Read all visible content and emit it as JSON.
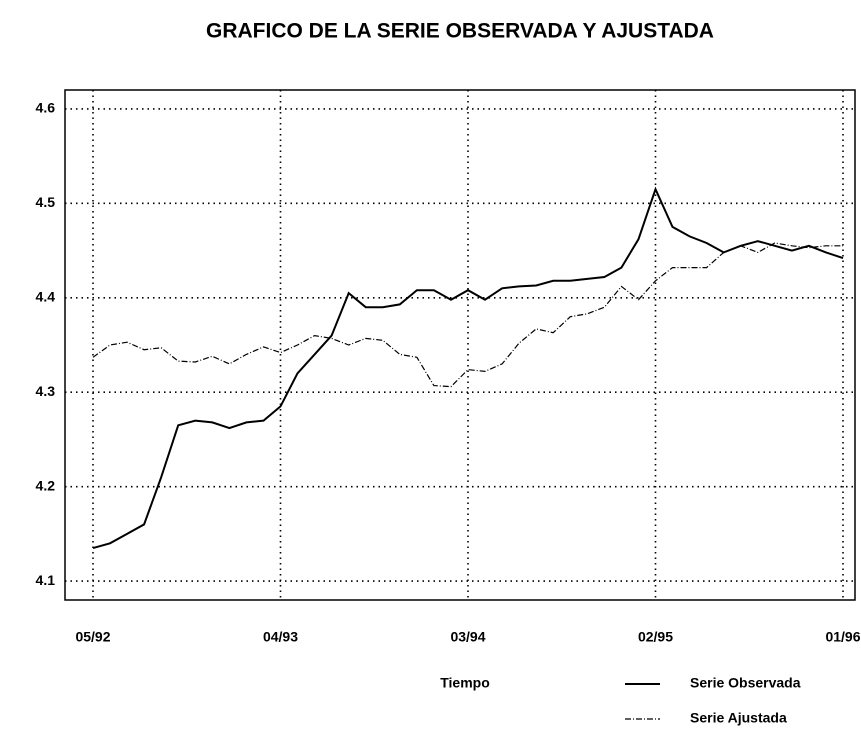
{
  "chart_data": {
    "type": "line",
    "title": "GRAFICO DE LA SERIE OBSERVADA Y AJUSTADA",
    "xlabel": "Tiempo",
    "categories": [
      "05/92",
      null,
      null,
      null,
      null,
      null,
      null,
      null,
      null,
      null,
      null,
      "04/93",
      null,
      null,
      null,
      null,
      null,
      null,
      null,
      null,
      null,
      null,
      "03/94",
      null,
      null,
      null,
      null,
      null,
      null,
      null,
      null,
      null,
      null,
      "02/95",
      null,
      null,
      null,
      null,
      null,
      null,
      null,
      null,
      null,
      null,
      "01/96"
    ],
    "series": [
      {
        "name": "Serie Observada",
        "color": "#000000",
        "style": "solid",
        "values": [
          4.135,
          4.14,
          4.15,
          4.16,
          4.21,
          4.265,
          4.27,
          4.268,
          4.262,
          4.268,
          4.27,
          4.285,
          4.32,
          4.34,
          4.36,
          4.405,
          4.39,
          4.39,
          4.393,
          4.408,
          4.408,
          4.398,
          4.408,
          4.398,
          4.41,
          4.412,
          4.413,
          4.418,
          4.418,
          4.42,
          4.422,
          4.432,
          4.462,
          4.515,
          4.475,
          4.465,
          4.458,
          4.448,
          4.455,
          4.46,
          4.455,
          4.45,
          4.455,
          4.448,
          4.442
        ]
      },
      {
        "name": "Serie Ajustada",
        "color": "#000000",
        "style": "dashed",
        "values": [
          4.337,
          4.35,
          4.353,
          4.345,
          4.347,
          4.333,
          4.332,
          4.338,
          4.33,
          4.34,
          4.348,
          4.342,
          4.35,
          4.36,
          4.357,
          4.35,
          4.357,
          4.355,
          4.34,
          4.337,
          4.307,
          4.306,
          4.324,
          4.322,
          4.33,
          4.352,
          4.367,
          4.363,
          4.38,
          4.383,
          4.39,
          4.412,
          4.398,
          4.418,
          4.432,
          4.432,
          4.432,
          4.448,
          4.455,
          4.448,
          4.458,
          4.455,
          4.453,
          4.455,
          4.455
        ]
      }
    ],
    "ylim": [
      4.08,
      4.62
    ],
    "yticks": [
      4.1,
      4.2,
      4.3,
      4.4,
      4.5,
      4.6
    ],
    "grid": true
  }
}
